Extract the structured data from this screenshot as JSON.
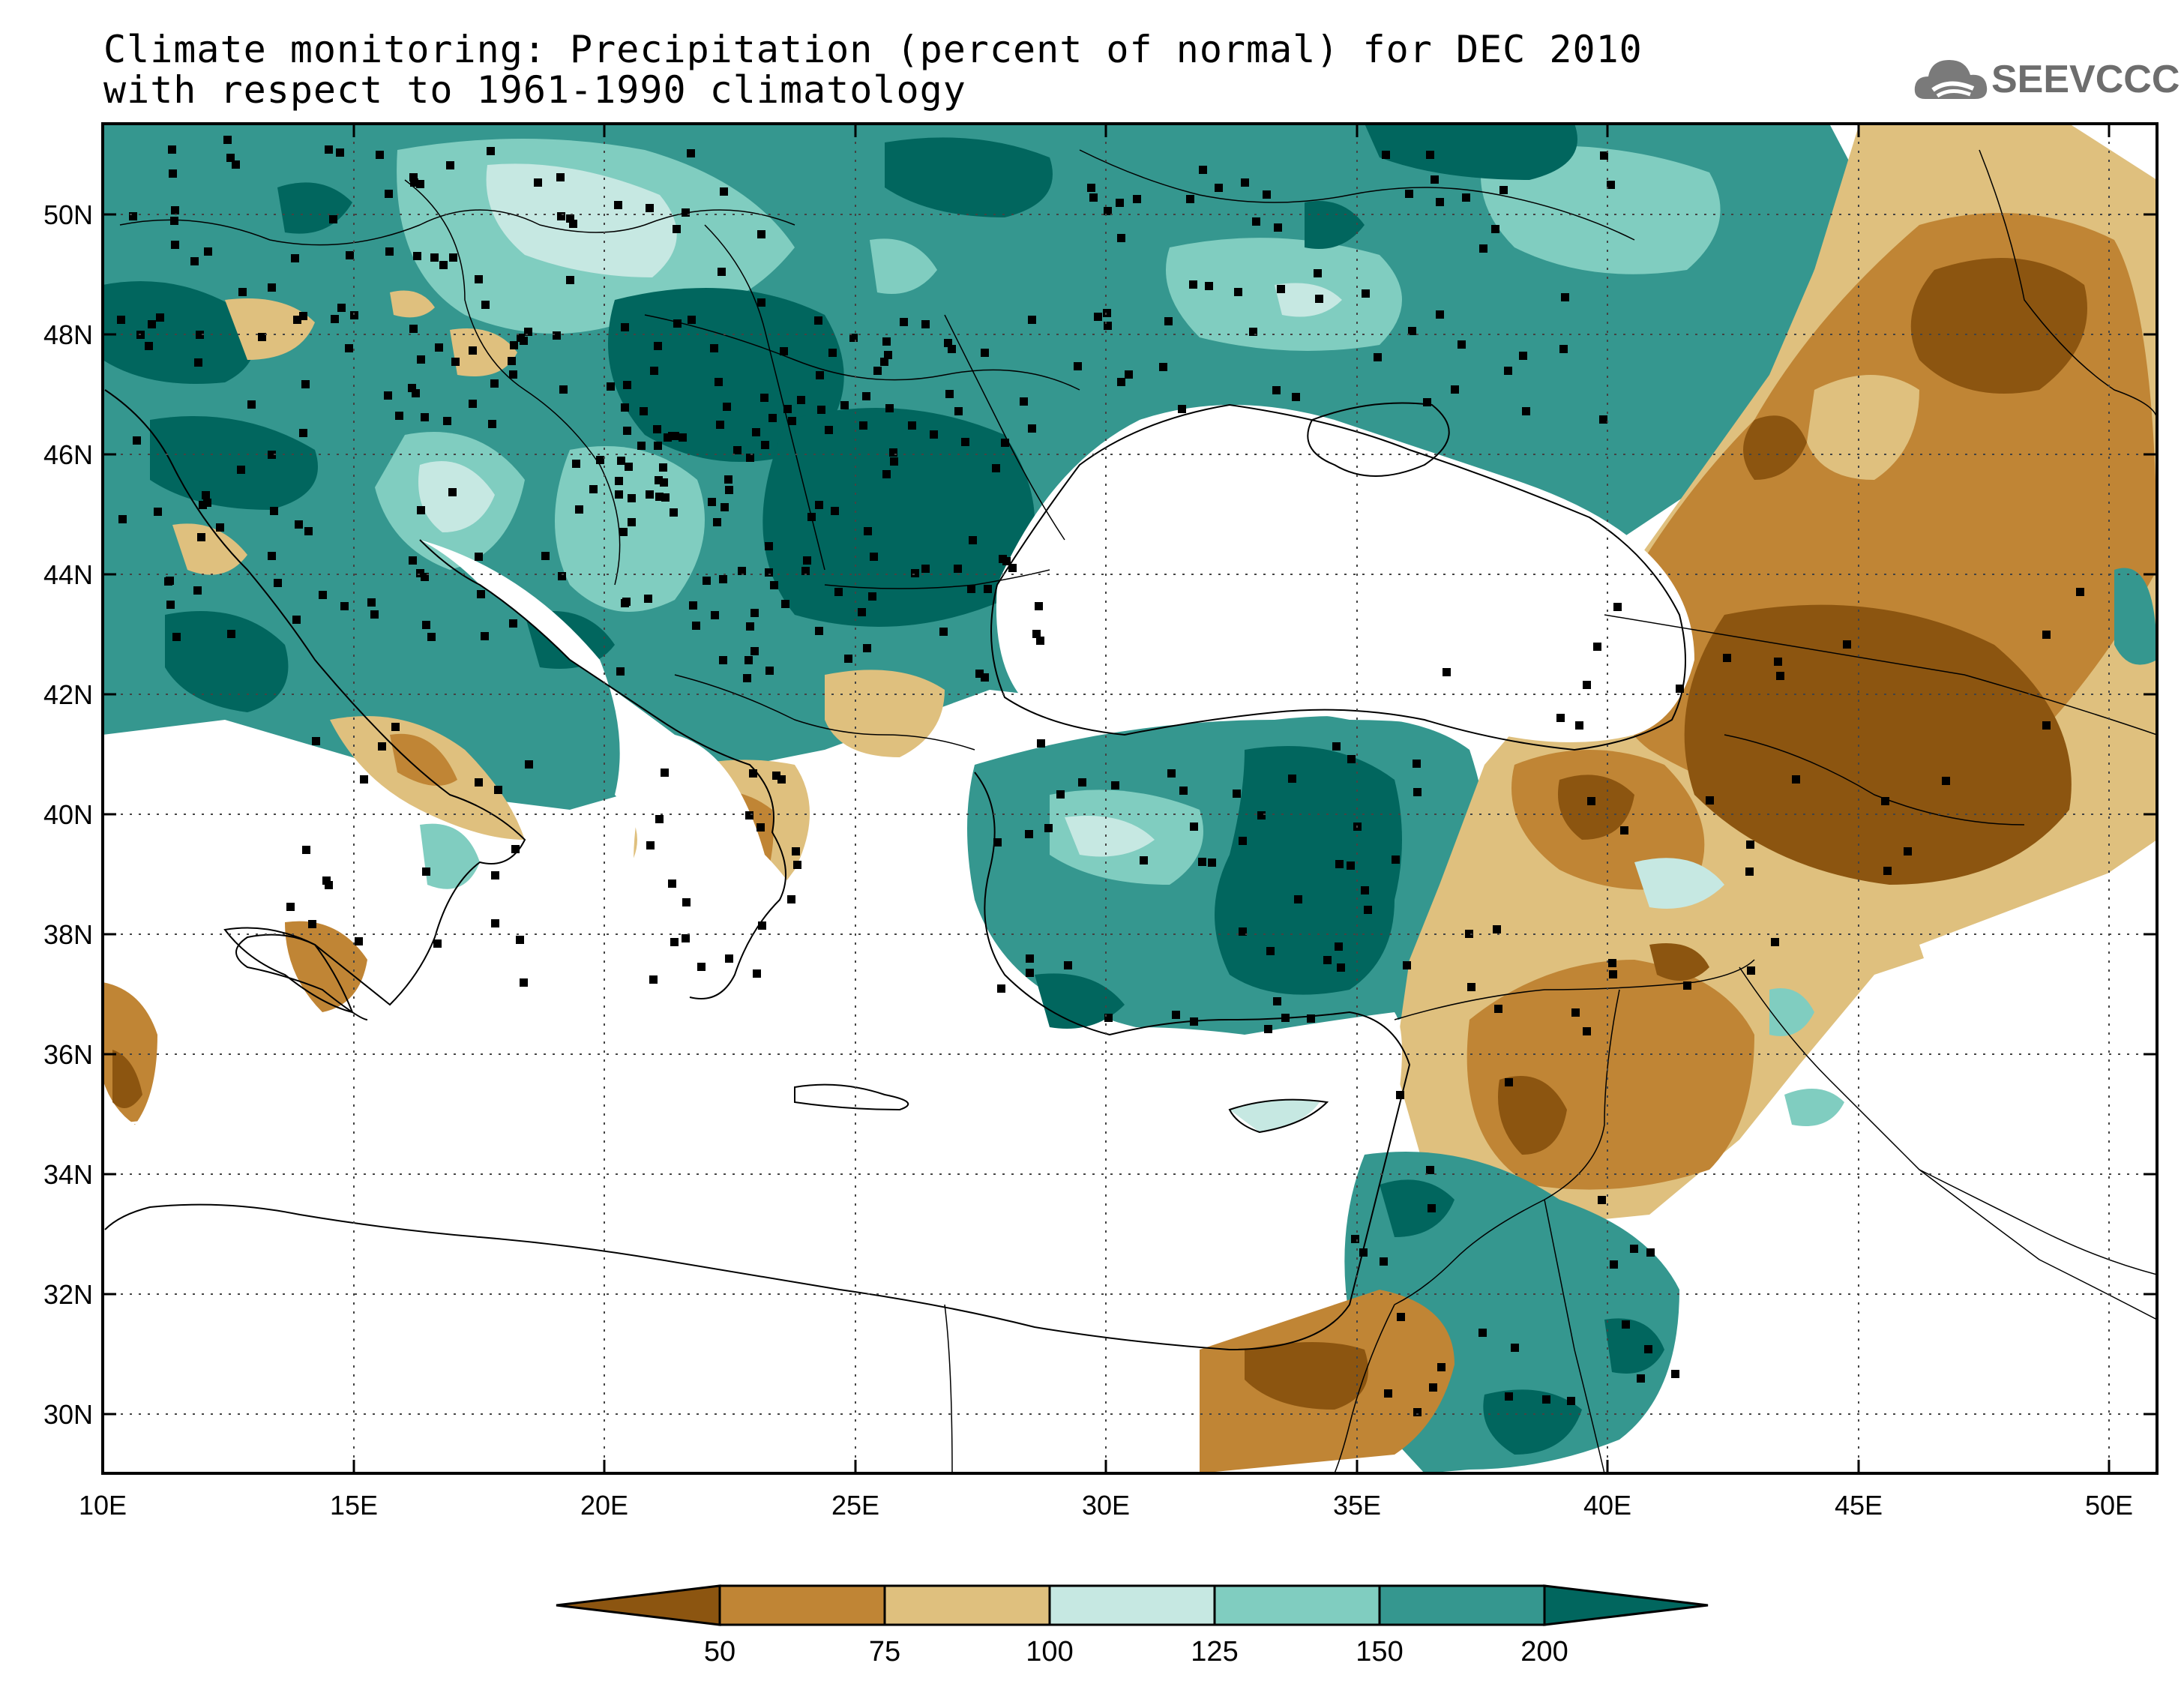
{
  "title": {
    "line1": "Climate monitoring: Precipitation (percent of normal) for DEC 2010",
    "line2": "with respect to 1961-1990 climatology"
  },
  "logo": {
    "text": "SEEVCCC",
    "icon": "cloud-icon"
  },
  "axes": {
    "lat_labels": [
      "50N",
      "48N",
      "46N",
      "44N",
      "42N",
      "40N",
      "38N",
      "36N",
      "34N",
      "32N",
      "30N"
    ],
    "lon_labels": [
      "10E",
      "15E",
      "20E",
      "25E",
      "30E",
      "35E",
      "40E",
      "45E",
      "50E"
    ]
  },
  "legend": {
    "ticks": [
      "50",
      "75",
      "100",
      "125",
      "150",
      "200"
    ],
    "colors": [
      "#8c5510",
      "#c08535",
      "#dfc07e",
      "#c6e8e2",
      "#80cdc0",
      "#35978f",
      "#01665e"
    ]
  },
  "colors": {
    "land_border": "#000000",
    "sea": "#ffffff",
    "station": "#000000"
  }
}
